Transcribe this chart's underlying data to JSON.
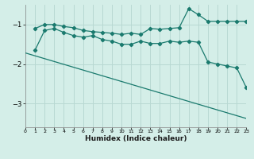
{
  "bg_color": "#d4eee8",
  "grid_color": "#b8d8d2",
  "line_color": "#1a7a6e",
  "xlabel": "Humidex (Indice chaleur)",
  "xlim": [
    0,
    23
  ],
  "ylim": [
    -3.6,
    -0.5
  ],
  "yticks": [
    -3,
    -2,
    -1
  ],
  "xticks": [
    0,
    1,
    2,
    3,
    4,
    5,
    6,
    7,
    8,
    9,
    10,
    11,
    12,
    13,
    14,
    15,
    16,
    17,
    18,
    19,
    20,
    21,
    22,
    23
  ],
  "line1_x": [
    1,
    2,
    3,
    4,
    5,
    6,
    7,
    8,
    9,
    10,
    11,
    12,
    13,
    14,
    15,
    16,
    17,
    18,
    19,
    20,
    21,
    22,
    23
  ],
  "line1_y": [
    -1.1,
    -1.0,
    -1.0,
    -1.05,
    -1.08,
    -1.15,
    -1.18,
    -1.2,
    -1.22,
    -1.25,
    -1.22,
    -1.25,
    -1.1,
    -1.12,
    -1.1,
    -1.08,
    -0.6,
    -0.75,
    -0.92,
    -0.92,
    -0.92,
    -0.92,
    -0.92
  ],
  "line2_x": [
    1,
    2,
    3,
    4,
    5,
    6,
    7,
    8,
    9,
    10,
    11,
    12,
    13,
    14,
    15,
    16,
    17,
    18,
    19,
    20,
    21,
    22,
    23
  ],
  "line2_y": [
    -1.65,
    -1.15,
    -1.1,
    -1.2,
    -1.28,
    -1.32,
    -1.28,
    -1.38,
    -1.42,
    -1.5,
    -1.5,
    -1.42,
    -1.48,
    -1.48,
    -1.42,
    -1.45,
    -1.42,
    -1.45,
    -1.95,
    -2.0,
    -2.05,
    -2.1,
    -2.6
  ],
  "line3_x": [
    0,
    23
  ],
  "line3_y": [
    -1.72,
    -3.38
  ]
}
